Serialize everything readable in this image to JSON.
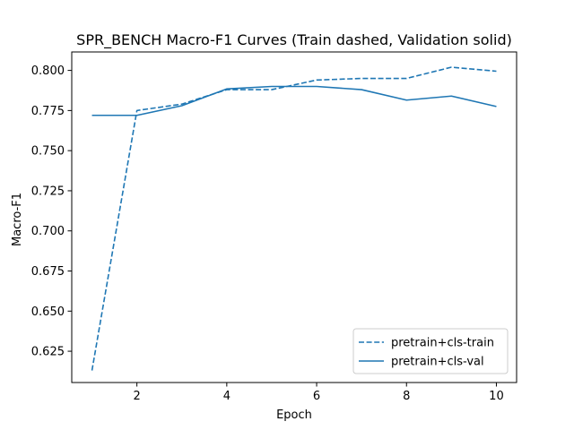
{
  "chart_data": {
    "type": "line",
    "title": "SPR_BENCH Macro-F1 Curves (Train dashed, Validation solid)",
    "xlabel": "Epoch",
    "ylabel": "Macro-F1",
    "xlim": [
      0.55,
      10.45
    ],
    "ylim": [
      0.6055,
      0.8115
    ],
    "xticks": [
      2,
      4,
      6,
      8,
      10
    ],
    "xtick_labels": [
      "2",
      "4",
      "6",
      "8",
      "10"
    ],
    "yticks": [
      0.625,
      0.65,
      0.675,
      0.7,
      0.725,
      0.75,
      0.775,
      0.8
    ],
    "ytick_labels": [
      "0.625",
      "0.650",
      "0.675",
      "0.700",
      "0.725",
      "0.750",
      "0.775",
      "0.800"
    ],
    "grid": false,
    "legend_position": "lower-right",
    "x": [
      1,
      2,
      3,
      4,
      5,
      6,
      7,
      8,
      9,
      10
    ],
    "series": [
      {
        "name": "pretrain+cls-train",
        "style": "dashed",
        "color": "#1f77b4",
        "values": [
          0.613,
          0.775,
          0.779,
          0.788,
          0.788,
          0.794,
          0.795,
          0.795,
          0.802,
          0.7995
        ]
      },
      {
        "name": "pretrain+cls-val",
        "style": "solid",
        "color": "#1f77b4",
        "values": [
          0.772,
          0.772,
          0.778,
          0.7885,
          0.79,
          0.79,
          0.788,
          0.7815,
          0.784,
          0.7775
        ]
      }
    ]
  }
}
